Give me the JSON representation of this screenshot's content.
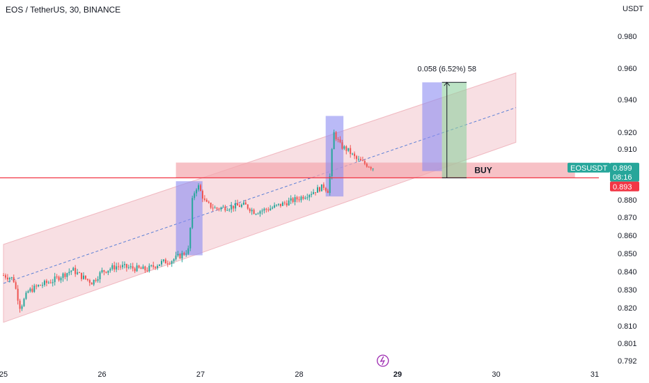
{
  "header": {
    "title": "EOS / TetherUS, 30, BINANCE",
    "currency": "USDT"
  },
  "colors": {
    "up": "#26a69a",
    "down": "#ef5350",
    "channel": "#f0b8c0",
    "zone": "#f3a6ae",
    "blue_box": "#8c8cf2",
    "green_box": "#8fd19e",
    "red_line": "#f23645",
    "midline": "#5b7fd6"
  },
  "chart_data": {
    "type": "candlestick",
    "symbol_label": "EOSUSDT",
    "y_ticks": [
      0.792,
      0.801,
      0.81,
      0.82,
      0.83,
      0.84,
      0.85,
      0.86,
      0.87,
      0.88,
      0.91,
      0.92,
      0.94,
      0.96,
      0.98
    ],
    "y_tick_labels": [
      "0.792",
      "0.801",
      "0.810",
      "0.820",
      "0.830",
      "0.840",
      "0.850",
      "0.860",
      "0.870",
      "0.880",
      "0.910",
      "0.920",
      "0.940",
      "0.960",
      "0.980"
    ],
    "x_ticks": [
      {
        "label": "25",
        "day": 25,
        "bold": false
      },
      {
        "label": "26",
        "day": 26,
        "bold": false
      },
      {
        "label": "27",
        "day": 27,
        "bold": false
      },
      {
        "label": "28",
        "day": 28,
        "bold": false
      },
      {
        "label": "29",
        "day": 29,
        "bold": true
      },
      {
        "label": "30",
        "day": 30,
        "bold": false
      },
      {
        "label": "31",
        "day": 31,
        "bold": false
      }
    ],
    "price_path": [
      [
        25.0,
        0.838
      ],
      [
        25.1,
        0.836
      ],
      [
        25.17,
        0.82
      ],
      [
        25.25,
        0.829
      ],
      [
        25.35,
        0.832
      ],
      [
        25.5,
        0.835
      ],
      [
        25.6,
        0.838
      ],
      [
        25.7,
        0.841
      ],
      [
        25.8,
        0.837
      ],
      [
        25.9,
        0.834
      ],
      [
        26.0,
        0.84
      ],
      [
        26.15,
        0.843
      ],
      [
        26.3,
        0.842
      ],
      [
        26.45,
        0.841
      ],
      [
        26.6,
        0.845
      ],
      [
        26.7,
        0.846
      ],
      [
        26.8,
        0.849
      ],
      [
        26.88,
        0.852
      ],
      [
        26.92,
        0.882
      ],
      [
        26.97,
        0.889
      ],
      [
        27.05,
        0.878
      ],
      [
        27.15,
        0.875
      ],
      [
        27.3,
        0.876
      ],
      [
        27.45,
        0.877
      ],
      [
        27.55,
        0.873
      ],
      [
        27.7,
        0.875
      ],
      [
        27.85,
        0.878
      ],
      [
        28.0,
        0.881
      ],
      [
        28.15,
        0.885
      ],
      [
        28.25,
        0.888
      ],
      [
        28.3,
        0.885
      ],
      [
        28.35,
        0.92
      ],
      [
        28.42,
        0.912
      ],
      [
        28.5,
        0.909
      ],
      [
        28.58,
        0.904
      ],
      [
        28.68,
        0.901
      ],
      [
        28.75,
        0.899
      ]
    ],
    "support_line": 0.893,
    "current_price": {
      "value": "0.899",
      "countdown": "08:16",
      "label": "EOSUSDT"
    },
    "support_label": "0.893",
    "channel": {
      "lower_start": [
        25.0,
        0.812
      ],
      "lower_end": [
        30.2,
        0.914
      ],
      "width": 0.043
    },
    "buy_zone": {
      "from": 0.893,
      "to": 0.902,
      "x_from": 26.75,
      "x_to": 30.8,
      "label": "BUY"
    },
    "measure": {
      "from": 0.893,
      "to": 0.951,
      "text": "0.058 (6.52%) 58",
      "x": 29.5
    },
    "boxes": [
      {
        "kind": "blue",
        "x1": 26.75,
        "x2": 27.02,
        "y1": 0.849,
        "y2": 0.891
      },
      {
        "kind": "blue",
        "x1": 28.27,
        "x2": 28.45,
        "y1": 0.882,
        "y2": 0.93
      },
      {
        "kind": "blue",
        "x1": 29.25,
        "x2": 29.45,
        "y1": 0.897,
        "y2": 0.951
      },
      {
        "kind": "green",
        "x1": 29.45,
        "x2": 29.7,
        "y1": 0.893,
        "y2": 0.951
      }
    ],
    "grid": false
  }
}
